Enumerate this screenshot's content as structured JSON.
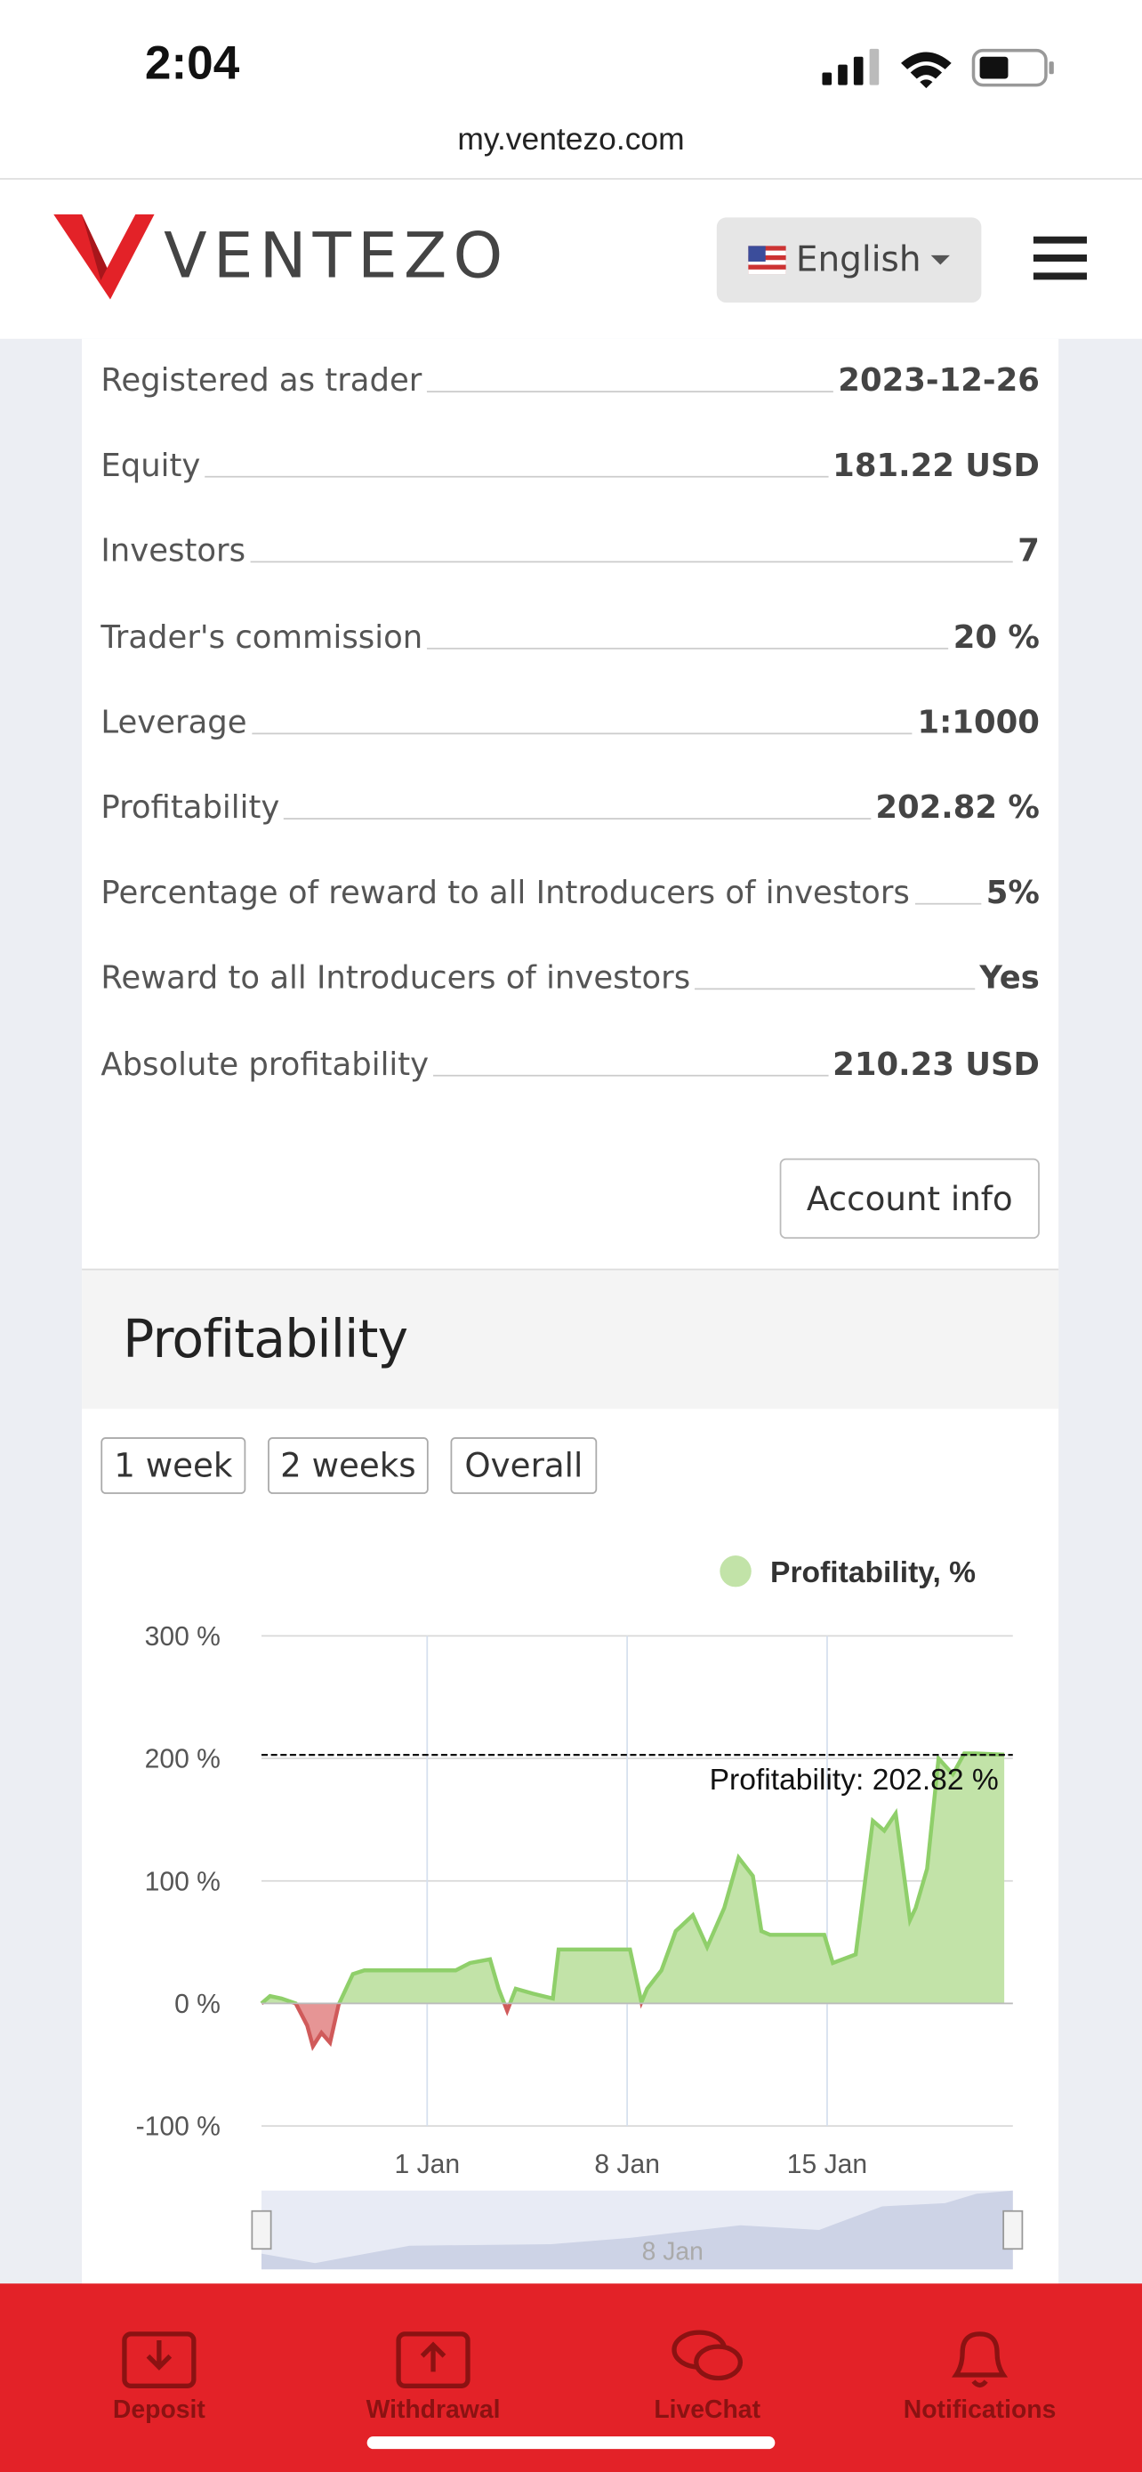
{
  "status_bar": {
    "time": "2:04"
  },
  "url": "my.ventezo.com",
  "header": {
    "logo": "VENTEZO",
    "language": "English"
  },
  "info_rows": [
    {
      "label": "Registered as trader",
      "value": "2023-12-26"
    },
    {
      "label": "Equity",
      "value": "181.22 USD"
    },
    {
      "label": "Investors",
      "value": "7"
    },
    {
      "label": "Trader's commission",
      "value": "20 %"
    },
    {
      "label": "Leverage",
      "value": "1:1000"
    },
    {
      "label": "Profitability",
      "value": "202.82 %"
    },
    {
      "label": "Percentage of reward to all Introducers of investors",
      "value": "5%"
    },
    {
      "label": "Reward to all Introducers of investors",
      "value": "Yes"
    },
    {
      "label": "Absolute profitability",
      "value": "210.23 USD"
    }
  ],
  "account_button": "Account info",
  "section_title": "Profitability",
  "period_buttons": [
    "1 week",
    "2 weeks",
    "Overall"
  ],
  "chart_data": {
    "type": "line",
    "x": [
      -4.8,
      -4.5,
      -4.1,
      -3.6,
      -3.2,
      -3.0,
      -2.7,
      -2.4,
      -2.1,
      -1.6,
      -1.2,
      2.0,
      2.5,
      3.2,
      3.5,
      3.8,
      4.1,
      4.7,
      5.4,
      5.6,
      8.1,
      8.5,
      8.7,
      9.2,
      9.7,
      10.3,
      10.8,
      11.4,
      11.9,
      12.4,
      12.7,
      13.0,
      14.9,
      15.2,
      16.0,
      16.6,
      17.0,
      17.4,
      17.9,
      18.1,
      18.5,
      18.9,
      19.4,
      19.8,
      20.2,
      21.2
    ],
    "series": [
      {
        "name": "Profitability, %",
        "color": "#8fcf6a",
        "fill": "#c2e3a8",
        "values": [
          0,
          6,
          4,
          0,
          -18,
          -35,
          -24,
          -32,
          -1,
          24,
          27,
          27,
          33,
          36,
          12,
          -6,
          12,
          8,
          4,
          44,
          44,
          1,
          12,
          27,
          59,
          72,
          46,
          78,
          119,
          104,
          59,
          56,
          56,
          33,
          40,
          149,
          141,
          155,
          68,
          78,
          110,
          200,
          187,
          204,
          204,
          203
        ]
      }
    ],
    "negative_color": "#e07b7b",
    "xlim": [
      -4.8,
      21.5
    ],
    "xticks": [
      {
        "value": 1,
        "label": "1 Jan"
      },
      {
        "value": 8,
        "label": "8 Jan"
      },
      {
        "value": 15,
        "label": "15 Jan"
      }
    ],
    "ylim": [
      -100,
      300
    ],
    "yticks": [
      {
        "value": -100,
        "label": "-100 %"
      },
      {
        "value": 0,
        "label": "0 %"
      },
      {
        "value": 100,
        "label": "100 %"
      },
      {
        "value": 200,
        "label": "200 %"
      },
      {
        "value": 300,
        "label": "300 %"
      }
    ],
    "grid": true,
    "legend": "top-right",
    "annotation": {
      "value": 202.82,
      "label": "Profitability: 202.82 %"
    },
    "navigator_label": "8 Jan"
  },
  "bottom_nav": [
    "Deposit",
    "Withdrawal",
    "LiveChat",
    "Notifications"
  ]
}
